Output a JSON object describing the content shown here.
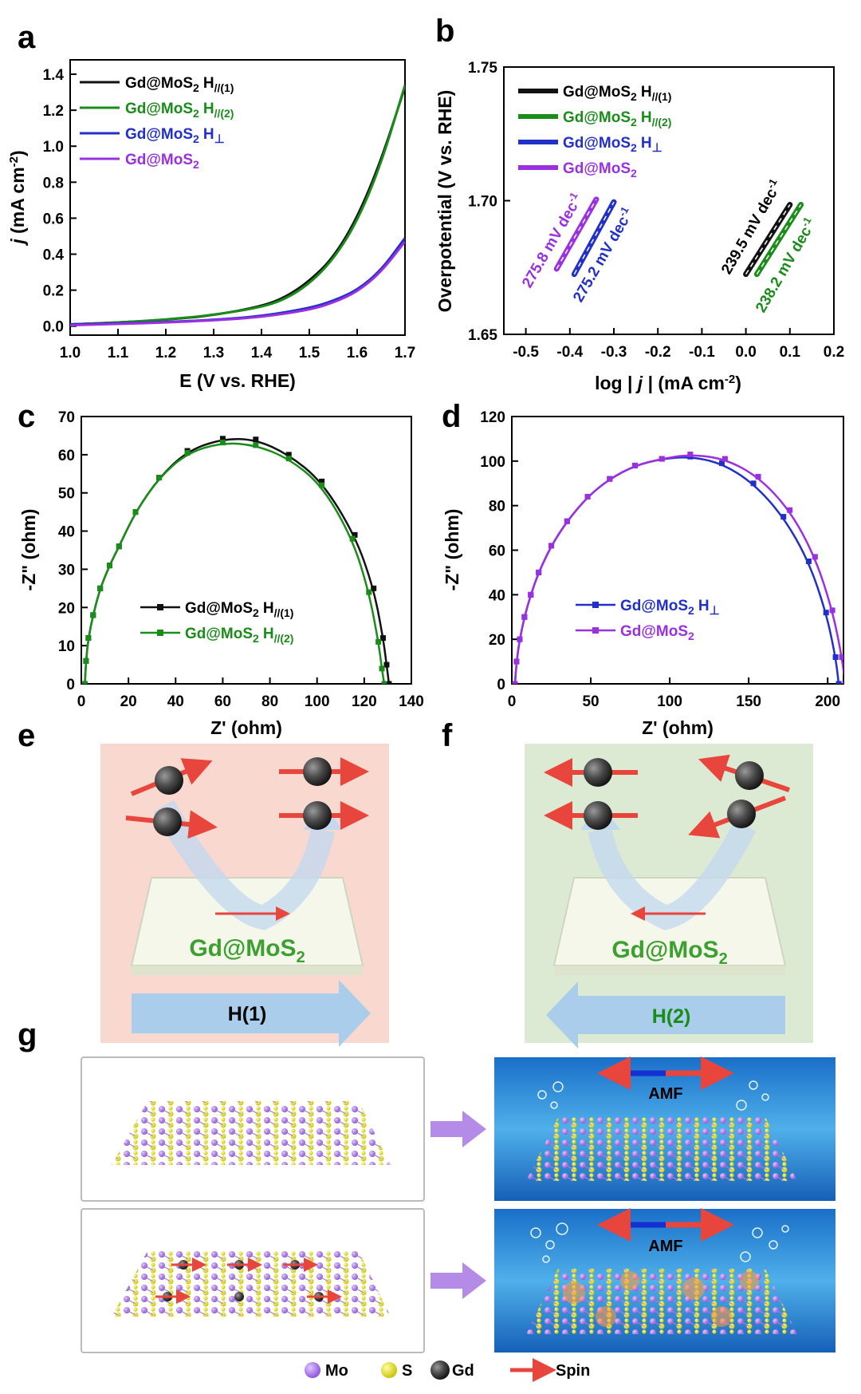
{
  "panels": {
    "a": "a",
    "b": "b",
    "c": "c",
    "d": "d",
    "e": "e",
    "f": "f",
    "g": "g"
  },
  "labels": {
    "gd_mos2": "Gd@MoS",
    "sub2": "2",
    "h": "H",
    "par1": "//(1)",
    "par2": "//(2)",
    "perp": "⊥",
    "neg2": "-2"
  },
  "colors": {
    "black": "#111111",
    "green": "#1a8c1a",
    "blue": "#2030c8",
    "purple": "#9a30e0",
    "red": "#e8453c",
    "bg_e": "#f8d8cf",
    "bg_f": "#dcead3",
    "arrow_blue": "#a9cdea"
  },
  "chart_data": [
    {
      "id": "a",
      "type": "line",
      "xlabel_pre": "E (V vs. RHE)",
      "ylabel_j": "j",
      "ylabel_rest": " (mA cm",
      "ylabel_close": ")",
      "xlim": [
        1.0,
        1.7
      ],
      "ylim": [
        -0.05,
        1.48
      ],
      "xticks": [
        "1.0",
        "1.1",
        "1.2",
        "1.3",
        "1.4",
        "1.5",
        "1.6",
        "1.7"
      ],
      "yticks": [
        "0.0",
        "0.2",
        "0.4",
        "0.6",
        "0.8",
        "1.0",
        "1.2",
        "1.4"
      ],
      "legend_position": "top-left",
      "series": [
        {
          "name": "Gd@MoS2 H//(1)",
          "color": "#111111",
          "x": [
            1.0,
            1.1,
            1.2,
            1.3,
            1.4,
            1.45,
            1.5,
            1.55,
            1.6,
            1.65,
            1.7
          ],
          "y": [
            0.01,
            0.02,
            0.035,
            0.06,
            0.11,
            0.16,
            0.25,
            0.38,
            0.6,
            0.92,
            1.33
          ]
        },
        {
          "name": "Gd@MoS2 H//(2)",
          "color": "#1a8c1a",
          "x": [
            1.0,
            1.1,
            1.2,
            1.3,
            1.4,
            1.45,
            1.5,
            1.55,
            1.6,
            1.65,
            1.7
          ],
          "y": [
            0.01,
            0.02,
            0.036,
            0.062,
            0.105,
            0.15,
            0.235,
            0.37,
            0.58,
            0.9,
            1.34
          ]
        },
        {
          "name": "Gd@MoS2 H⊥",
          "color": "#2030c8",
          "x": [
            1.0,
            1.1,
            1.2,
            1.3,
            1.4,
            1.5,
            1.55,
            1.6,
            1.65,
            1.7
          ],
          "y": [
            0.01,
            0.015,
            0.022,
            0.035,
            0.055,
            0.1,
            0.14,
            0.2,
            0.31,
            0.49
          ]
        },
        {
          "name": "Gd@MoS2",
          "color": "#9a30e0",
          "x": [
            1.0,
            1.1,
            1.2,
            1.3,
            1.4,
            1.5,
            1.55,
            1.6,
            1.65,
            1.7
          ],
          "y": [
            0.005,
            0.012,
            0.02,
            0.032,
            0.05,
            0.09,
            0.13,
            0.19,
            0.3,
            0.47
          ]
        }
      ]
    },
    {
      "id": "b",
      "type": "line",
      "xlabel_pre": "log | ",
      "xlabel_j": "j",
      "xlabel_post": " | (mA cm",
      "xlabel_close": ")",
      "ylabel": "Overpotential (V vs. RHE)",
      "xlim": [
        -0.55,
        0.2
      ],
      "ylim": [
        1.65,
        1.75
      ],
      "xticks": [
        "-0.5",
        "-0.4",
        "-0.3",
        "-0.2",
        "-0.1",
        "0.0",
        "0.1",
        "0.2"
      ],
      "yticks": [
        "1.65",
        "1.70",
        "1.75"
      ],
      "legend_position": "top-left",
      "series": [
        {
          "name": "Gd@MoS2 H//(1)",
          "color": "#111111",
          "x": [
            0.0,
            0.1
          ],
          "y": [
            1.6725,
            1.6985
          ],
          "slope_label": "239.5 mV dec",
          "slope_sup": "-1"
        },
        {
          "name": "Gd@MoS2 H//(2)",
          "color": "#1a8c1a",
          "x": [
            0.025,
            0.125
          ],
          "y": [
            1.6725,
            1.6985
          ],
          "slope_label": "238.2 mV dec",
          "slope_sup": "-1"
        },
        {
          "name": "Gd@MoS2 H⊥",
          "color": "#2030c8",
          "x": [
            -0.39,
            -0.3
          ],
          "y": [
            1.6725,
            1.6995
          ],
          "slope_label": "275.2 mV dec",
          "slope_sup": "-1"
        },
        {
          "name": "Gd@MoS2",
          "color": "#9a30e0",
          "x": [
            -0.43,
            -0.34
          ],
          "y": [
            1.6745,
            1.7005
          ],
          "slope_label": "275.8 mV dec",
          "slope_sup": "-1"
        }
      ]
    },
    {
      "id": "c",
      "type": "scatter",
      "xlabel": "Z' (ohm)",
      "ylabel": "-Z\" (ohm)",
      "xlim": [
        0,
        140
      ],
      "ylim": [
        0,
        70
      ],
      "xticks": [
        "0",
        "20",
        "40",
        "60",
        "80",
        "100",
        "120",
        "140"
      ],
      "yticks": [
        "0",
        "10",
        "20",
        "30",
        "40",
        "50",
        "60",
        "70"
      ],
      "legend_position": "lower-left",
      "series": [
        {
          "name": "Gd@MoS2 H//(1)",
          "color": "#111111",
          "x": [
            1.5,
            2,
            3,
            5,
            8,
            12,
            16,
            23,
            33,
            45,
            60,
            74,
            88,
            102,
            116,
            124,
            128,
            129.5,
            130.5
          ],
          "y": [
            0,
            6,
            12,
            18,
            25,
            31,
            36,
            45,
            54,
            61,
            64.2,
            64,
            60,
            53,
            39,
            25,
            12,
            5,
            0
          ]
        },
        {
          "name": "Gd@MoS2 H//(2)",
          "color": "#1a8c1a",
          "x": [
            1.5,
            2,
            3,
            5,
            8,
            12,
            16,
            23,
            33,
            45,
            60,
            74,
            88,
            102,
            115,
            122,
            126,
            127.5,
            128.5
          ],
          "y": [
            0,
            6,
            12,
            18,
            25,
            31,
            36,
            45,
            54,
            60.5,
            63.2,
            62.5,
            59,
            52,
            38,
            24,
            11,
            4,
            0
          ]
        }
      ]
    },
    {
      "id": "d",
      "type": "scatter",
      "xlabel": "Z' (ohm)",
      "ylabel": "-Z\" (ohm)",
      "xlim": [
        0,
        210
      ],
      "ylim": [
        0,
        120
      ],
      "xticks": [
        "0",
        "50",
        "100",
        "150",
        "200"
      ],
      "yticks": [
        "0",
        "20",
        "40",
        "60",
        "80",
        "100",
        "120"
      ],
      "legend_position": "lower-left",
      "series": [
        {
          "name": "Gd@MoS2 H⊥",
          "color": "#2030c8",
          "x": [
            2,
            3,
            5,
            8,
            12,
            17,
            25,
            35,
            48,
            62,
            78,
            95,
            113,
            133,
            153,
            172,
            188,
            199,
            205,
            207
          ],
          "y": [
            0,
            10,
            20,
            30,
            40,
            50,
            62,
            73,
            84,
            92,
            98,
            101,
            102,
            99,
            90,
            75,
            55,
            32,
            12,
            0
          ]
        },
        {
          "name": "Gd@MoS2",
          "color": "#9a30e0",
          "x": [
            2,
            3,
            5,
            8,
            12,
            17,
            25,
            35,
            48,
            62,
            78,
            95,
            113,
            135,
            156,
            176,
            192,
            203,
            209,
            211
          ],
          "y": [
            0,
            10,
            20,
            30,
            40,
            50,
            62,
            73,
            84,
            92,
            98,
            101,
            103,
            101,
            93,
            78,
            57,
            33,
            12,
            0
          ]
        }
      ]
    }
  ],
  "schematic_e": {
    "material": "Gd@MoS",
    "sub": "2",
    "field": "H(1)"
  },
  "schematic_f": {
    "material": "Gd@MoS",
    "sub": "2",
    "field": "H(2)"
  },
  "panel_g": {
    "amf": "AMF",
    "legend": {
      "mo": "Mo",
      "s": "S",
      "gd": "Gd",
      "spin": "Spin"
    }
  }
}
